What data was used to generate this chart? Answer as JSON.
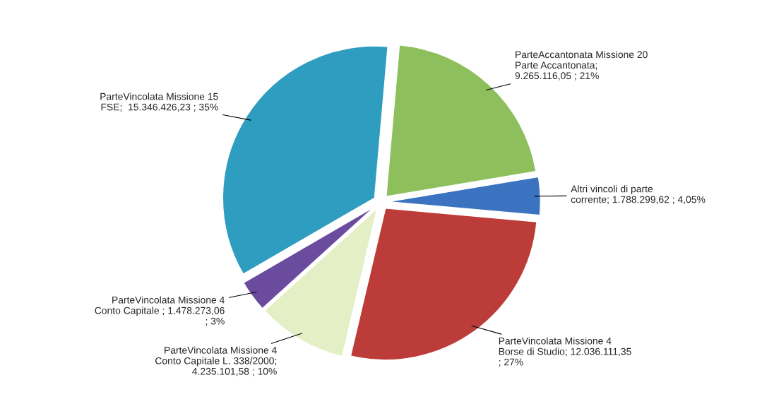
{
  "chart_data": {
    "type": "pie",
    "categories": [
      "ParteAccantonata Missione 20 Parte Accantonata",
      "Altri vincoli di parte corrente",
      "ParteVincolata Missione 4 Borse di Studio",
      "ParteVincolata Missione 4 Conto Capitale L. 338/2000",
      "ParteVincolata Missione 4 Conto Capitale",
      "ParteVincolata Missione 15 FSE"
    ],
    "values": [
      9265116.05,
      1788299.62,
      12036111.35,
      4235101.58,
      1478273.06,
      15346426.23
    ],
    "value_labels": [
      "; 9.265.116,05 ; 21%",
      "; 1.788.299,62 ; 4,05%",
      "; 12.036.111,35 ; 27%",
      "; 4.235.101,58 ; 10%",
      " ; 1.478.273,06 ; 3%",
      ";  15.346.426,23 ; 35%"
    ],
    "colors": [
      "#8dbf5c",
      "#3b73c0",
      "#bb3c38",
      "#e4efc6",
      "#6b4b9e",
      "#2f9dc0"
    ],
    "legend": false
  }
}
